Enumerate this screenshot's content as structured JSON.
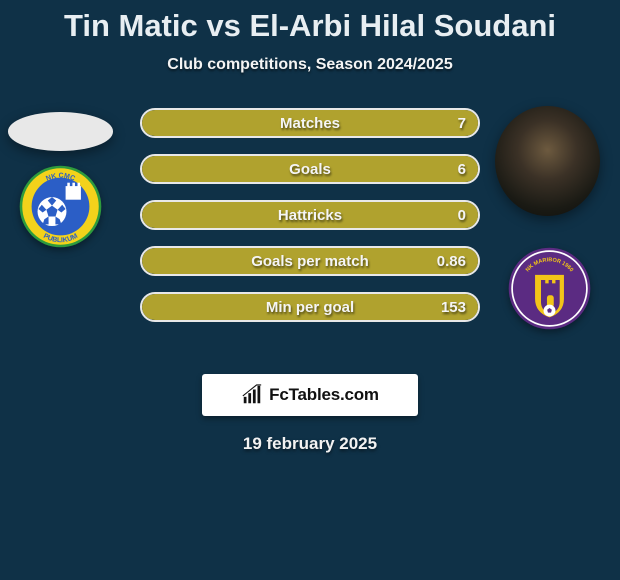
{
  "background_color": "#0f3147",
  "title": "Tin Matic vs El-Arbi Hilal Soudani",
  "subtitle": "Club competitions, Season 2024/2025",
  "date_text": "19 february 2025",
  "brand_text": "FcTables.com",
  "bars": {
    "bar_border_color": "#e8e8e8",
    "fill_color_olive": "#b0a22e",
    "label_text_color": "#f5f5f5",
    "rows": [
      {
        "label": "Matches",
        "value": "7",
        "fill_color": "#b0a22e",
        "fill_pct": 100
      },
      {
        "label": "Goals",
        "value": "6",
        "fill_color": "#b0a22e",
        "fill_pct": 100
      },
      {
        "label": "Hattricks",
        "value": "0",
        "fill_color": "#b0a22e",
        "fill_pct": 100
      },
      {
        "label": "Goals per match",
        "value": "0.86",
        "fill_color": "#b0a22e",
        "fill_pct": 100
      },
      {
        "label": "Min per goal",
        "value": "153",
        "fill_color": "#b0a22e",
        "fill_pct": 100
      }
    ]
  },
  "logo_left": {
    "outer_fill": "#2e9b3d",
    "ring_fill": "#f3d21b",
    "inner_fill": "#2b5ec6",
    "crest_fill": "#ffffff",
    "text_top": "NK CMC",
    "text_bottom": "PUBLIKUM"
  },
  "logo_right": {
    "outer_fill": "#5b2b82",
    "ring_fill": "#f2c418",
    "inner_fill": "#f2c418",
    "crest_fill": "#5b2b82",
    "arc_text": "NK MARIBOR 1960"
  }
}
